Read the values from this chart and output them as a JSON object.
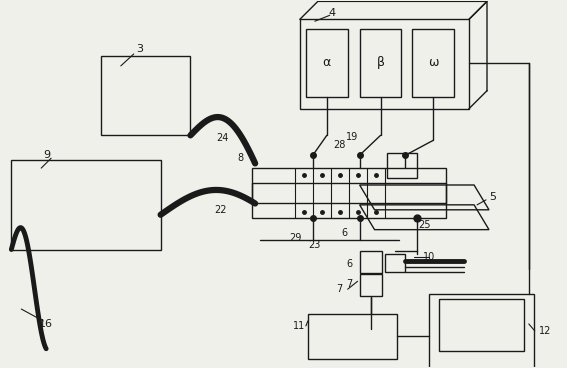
{
  "bg_color": "#f0f0eb",
  "line_color": "#1a1a1a",
  "alpha_label": "α",
  "beta_label": "β",
  "omega_label": "ω",
  "fig_w": 5.67,
  "fig_h": 3.68,
  "dpi": 100
}
